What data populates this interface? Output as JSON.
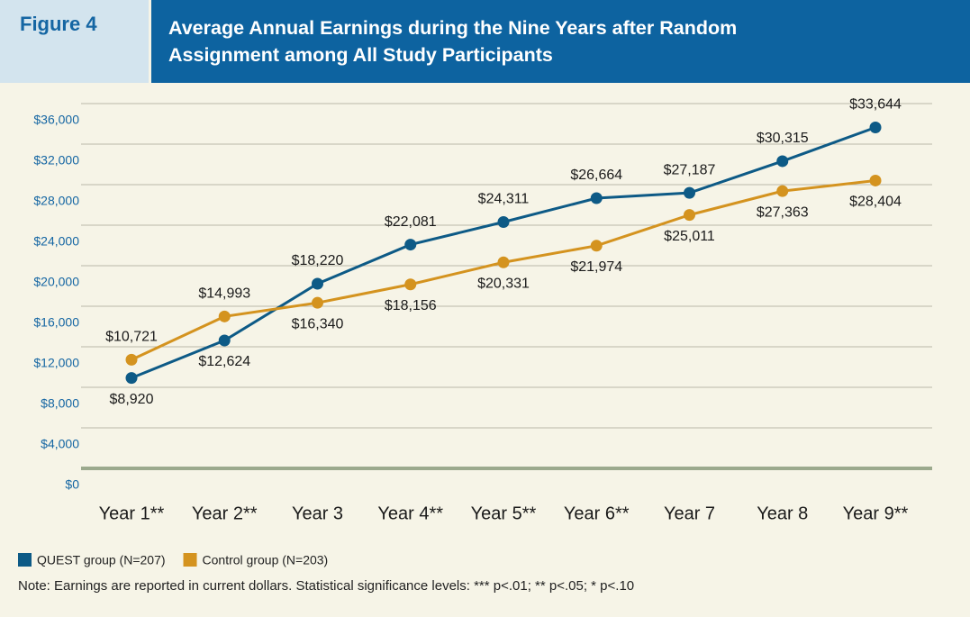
{
  "chart_data": {
    "type": "line",
    "figure_label": "Figure 4",
    "title": "Average Annual Earnings during the Nine Years after Random Assignment among All Study Participants",
    "categories": [
      "Year 1**",
      "Year 2**",
      "Year 3",
      "Year 4**",
      "Year 5**",
      "Year 6**",
      "Year 7",
      "Year 8",
      "Year 9**"
    ],
    "series": [
      {
        "name": "QUEST group (N=207)",
        "color": "#0d5a86",
        "values": [
          8920,
          12624,
          18220,
          22081,
          24311,
          26664,
          27187,
          30315,
          33644
        ],
        "value_labels": [
          "$8,920",
          "$12,624",
          "$18,220",
          "$22,081",
          "$24,311",
          "$26,664",
          "$27,187",
          "$30,315",
          "$33,644"
        ]
      },
      {
        "name": "Control group (N=203)",
        "color": "#d4931f",
        "values": [
          10721,
          14993,
          16340,
          18156,
          20331,
          21974,
          25011,
          27363,
          28404
        ],
        "value_labels": [
          "$10,721",
          "$14,993",
          "$16,340",
          "$18,156",
          "$20,331",
          "$21,974",
          "$25,011",
          "$27,363",
          "$28,404"
        ]
      }
    ],
    "ylim": [
      0,
      36000
    ],
    "yticks": [
      {
        "value": 0,
        "label": "$0"
      },
      {
        "value": 4000,
        "label": "$4,000"
      },
      {
        "value": 8000,
        "label": "$8,000"
      },
      {
        "value": 12000,
        "label": "$12,000"
      },
      {
        "value": 16000,
        "label": "$16,000"
      },
      {
        "value": 20000,
        "label": "$20,000"
      },
      {
        "value": 24000,
        "label": "$24,000"
      },
      {
        "value": 28000,
        "label": "$28,000"
      },
      {
        "value": 32000,
        "label": "$32,000"
      },
      {
        "value": 36000,
        "label": "$36,000"
      }
    ],
    "grid": true,
    "note": "Note: Earnings are reported in current dollars.  Statistical significance levels: *** p<.01; ** p<.05; * p<.10"
  }
}
